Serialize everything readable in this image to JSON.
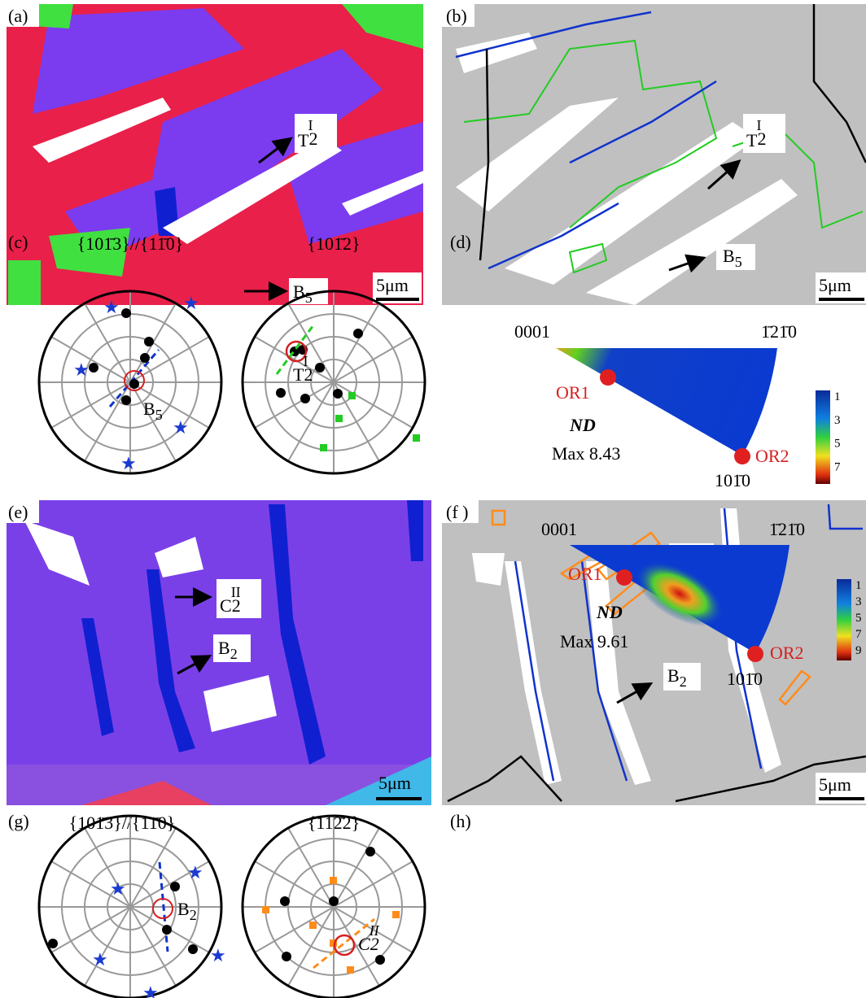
{
  "panels": {
    "a": {
      "label": "(a)",
      "twin": {
        "base": "T",
        "sub": "2",
        "sup": "I"
      },
      "band": {
        "base": "B",
        "sub": "5"
      },
      "scale": "5μm"
    },
    "b": {
      "label": "(b)",
      "twin": {
        "base": "T",
        "sub": "2",
        "sup": "I"
      },
      "band": {
        "base": "B",
        "sub": "5"
      },
      "scale": "5μm"
    },
    "c": {
      "label": "(c)",
      "left_title": "{101̄3}//{11̄0}",
      "right_title": "{101̄2}",
      "left_mark": {
        "base": "B",
        "sub": "5"
      },
      "right_mark": {
        "base": "T",
        "sub": "2",
        "sup": "I"
      }
    },
    "d": {
      "label": "(d)",
      "corner_left": "0001",
      "corner_right": "1̄21̄0",
      "corner_bottom": "101̄0",
      "or1": "OR1",
      "or2": "OR2",
      "axis": "ND",
      "max": "Max 8.43",
      "colorbar": [
        "1",
        "3",
        "5",
        "7"
      ]
    },
    "e": {
      "label": "(e)",
      "twin": {
        "base": "C",
        "sub": "2",
        "sup": "II"
      },
      "band": {
        "base": "B",
        "sub": "2"
      },
      "scale": "5μm"
    },
    "f": {
      "label": "(f )",
      "twin": {
        "base": "C",
        "sub": "2",
        "sup": "II"
      },
      "band": {
        "base": "B",
        "sub": "2"
      },
      "scale": "5μm"
    },
    "g": {
      "label": "(g)",
      "left_title": "{101̄3}//{11̄0}",
      "right_title": "{112̄2}",
      "left_mark": {
        "base": "B",
        "sub": "2"
      },
      "right_mark": {
        "base": "C",
        "sub": "2",
        "sup": "II"
      }
    },
    "h": {
      "label": "(h)",
      "corner_left": "0001",
      "corner_right": "1̄21̄0",
      "corner_bottom": "101̄0",
      "or1": "OR1",
      "or2": "OR2",
      "axis": "ND",
      "max": "Max 9.61",
      "colorbar": [
        "1",
        "3",
        "5",
        "7",
        "9"
      ]
    }
  }
}
